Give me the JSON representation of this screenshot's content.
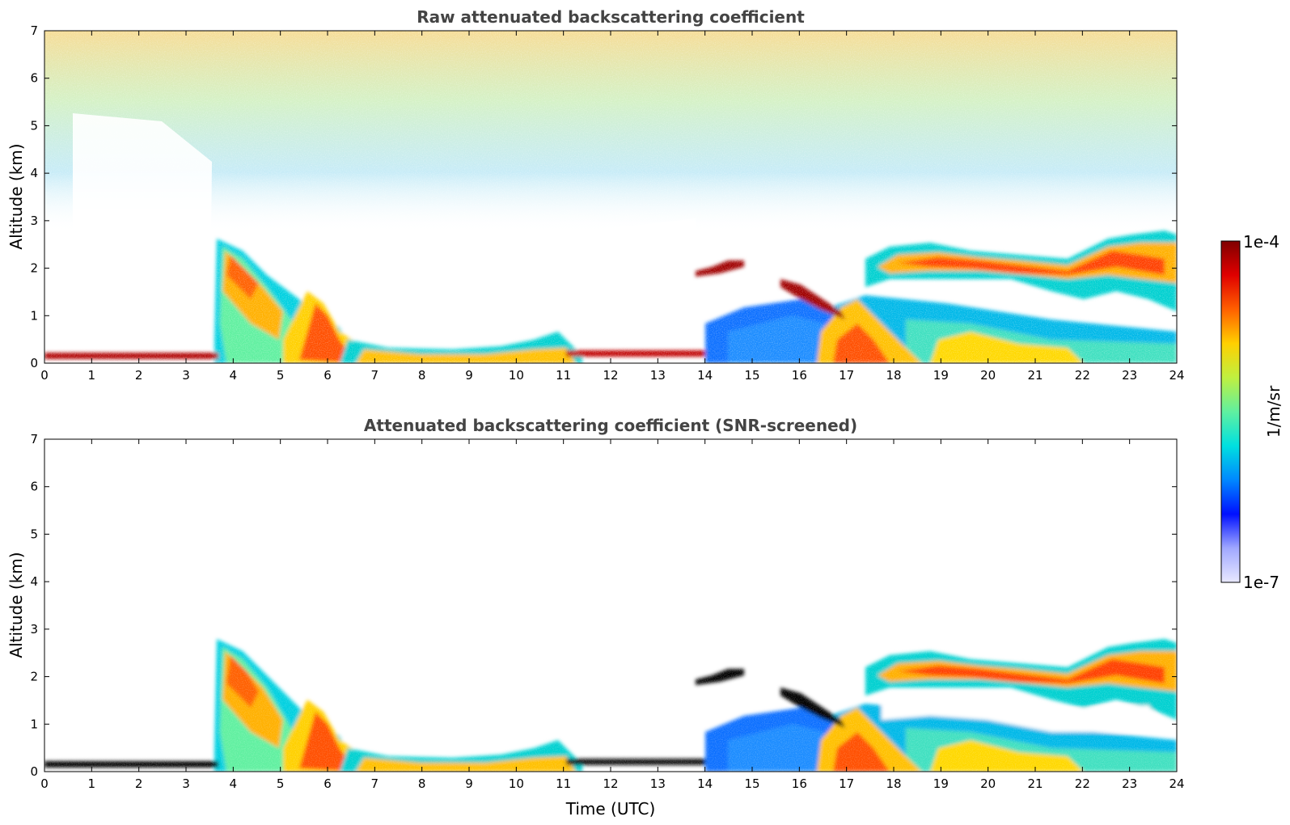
{
  "chart_data": [
    {
      "type": "heatmap",
      "title": "Raw attenuated backscattering coefficient",
      "xlabel": "",
      "ylabel": "Altitude (km)",
      "xlim": [
        0,
        24
      ],
      "ylim": [
        0,
        7
      ],
      "xticks": [
        "0",
        "1",
        "2",
        "3",
        "4",
        "5",
        "6",
        "7",
        "8",
        "9",
        "10",
        "11",
        "12",
        "13",
        "14",
        "15",
        "16",
        "17",
        "18",
        "19",
        "20",
        "21",
        "22",
        "23",
        "24"
      ],
      "yticks": [
        "0",
        "1",
        "2",
        "3",
        "4",
        "5",
        "6",
        "7"
      ],
      "features": [
        {
          "name": "surface layer",
          "x": [
            0,
            3.8
          ],
          "y_top_km": 0.2
        },
        {
          "name": "rising boundary layer",
          "x": [
            3.6,
            6.0
          ],
          "y_top_km": 2.7
        },
        {
          "name": "low aerosol layer",
          "x": [
            6,
            11.2
          ],
          "y_top_km": 0.7
        },
        {
          "name": "elevated thin layer",
          "x": [
            14.0,
            14.9
          ],
          "y_km": 2.0
        },
        {
          "name": "descending thin layer",
          "x": [
            15.6,
            17.0
          ],
          "y_km": [
            1.6,
            0.9
          ]
        },
        {
          "name": "elevated layer",
          "x": [
            17.4,
            24
          ],
          "y_km": [
            1.5,
            2.8
          ]
        }
      ]
    },
    {
      "type": "heatmap",
      "title": "Attenuated backscattering coefficient (SNR-screened)",
      "xlabel": "Time (UTC)",
      "ylabel": "Altitude (km)",
      "xlim": [
        0,
        24
      ],
      "ylim": [
        0,
        7
      ],
      "xticks": [
        "0",
        "1",
        "2",
        "3",
        "4",
        "5",
        "6",
        "7",
        "8",
        "9",
        "10",
        "11",
        "12",
        "13",
        "14",
        "15",
        "16",
        "17",
        "18",
        "19",
        "20",
        "21",
        "22",
        "23",
        "24"
      ],
      "yticks": [
        "0",
        "1",
        "2",
        "3",
        "4",
        "5",
        "6",
        "7"
      ]
    }
  ],
  "colorbar": {
    "label": "1/m/sr",
    "max_label": "1e-4",
    "min_label": "1e-7",
    "range": [
      1e-07,
      0.0001
    ],
    "scale": "log",
    "colors": [
      "#e8e8ff",
      "#a0a8ff",
      "#0010ff",
      "#0088ff",
      "#00e0e0",
      "#60f0a0",
      "#c0f040",
      "#ffd000",
      "#ff6000",
      "#e00000",
      "#800000"
    ]
  }
}
